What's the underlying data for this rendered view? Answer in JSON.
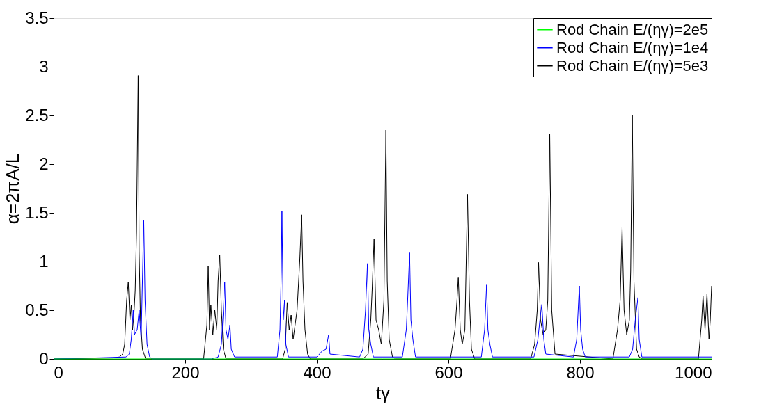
{
  "chart_data": {
    "type": "line",
    "xlabel": "tγ",
    "ylabel": "α=2πA/L",
    "xlim": [
      0,
      1000
    ],
    "xticks": [
      0,
      200,
      400,
      600,
      800,
      1000
    ],
    "ylim": [
      0,
      3.5
    ],
    "yticks": [
      0,
      0.5,
      1,
      1.5,
      2,
      2.5,
      3,
      3.5
    ],
    "grid": false,
    "legend": "top right",
    "marker": "none",
    "line_style": "solid",
    "series": [
      {
        "name": "Rod Chain E/(ηγ)=2e5",
        "color": "#00ff00",
        "x": [
          0,
          250,
          500,
          750,
          1000
        ],
        "values": [
          0,
          0,
          0,
          0,
          0
        ]
      },
      {
        "name": "Rod Chain E/(ηγ)=1e4",
        "color": "#0000ff",
        "x": [
          0,
          60,
          110,
          115,
          118,
          121,
          123,
          127,
          130,
          133,
          137,
          139,
          142,
          146,
          150,
          240,
          250,
          255,
          258,
          260,
          262,
          265,
          268,
          270,
          275,
          340,
          344,
          346,
          347,
          349,
          351,
          353,
          357,
          400,
          408,
          414,
          418,
          420,
          465,
          470,
          474,
          477,
          479,
          482,
          486,
          530,
          536,
          538,
          541,
          543,
          546,
          550,
          650,
          655,
          658,
          660,
          663,
          667,
          730,
          736,
          739,
          742,
          745,
          748,
          790,
          795,
          799,
          801,
          804,
          808,
          875,
          880,
          884,
          888,
          890,
          894,
          1000
        ],
        "values": [
          0,
          0.01,
          0.02,
          0.05,
          0.2,
          0.5,
          0.25,
          0.3,
          0.5,
          0.2,
          1.42,
          0.6,
          0.15,
          0.02,
          0,
          0,
          0.02,
          0.15,
          0.5,
          0.79,
          0.3,
          0.2,
          0.35,
          0.1,
          0.02,
          0.02,
          0.3,
          0.9,
          1.52,
          0.4,
          0.6,
          0.15,
          0.02,
          0.02,
          0.08,
          0.1,
          0.25,
          0.05,
          0.02,
          0.1,
          0.5,
          0.98,
          0.3,
          0.15,
          0.02,
          0.02,
          0.3,
          0.6,
          1.09,
          0.4,
          0.2,
          0.02,
          0.02,
          0.3,
          0.76,
          0.3,
          0.15,
          0.02,
          0.02,
          0.2,
          0.4,
          0.56,
          0.2,
          0.05,
          0.02,
          0.2,
          0.75,
          0.3,
          0.1,
          0.02,
          0.02,
          0.1,
          0.4,
          0.63,
          0.2,
          0.02,
          0.02
        ]
      },
      {
        "name": "Rod Chain E/(ηγ)=5e3",
        "color": "#000000",
        "x": [
          0,
          90,
          100,
          105,
          108,
          111,
          113.5,
          116,
          118,
          120,
          122,
          124,
          126,
          128.5,
          130,
          132,
          135,
          140,
          228,
          233,
          235,
          237,
          239,
          242,
          245,
          248,
          250,
          252.5,
          255,
          258,
          262,
          348,
          352,
          355,
          358,
          361,
          364,
          367,
          370,
          374,
          377,
          379,
          382,
          386,
          390,
          470,
          478,
          482,
          484,
          487,
          490,
          494,
          498,
          502,
          505,
          507,
          510,
          515,
          520,
          603,
          610,
          613,
          615,
          618,
          621,
          625,
          629,
          632,
          635,
          640,
          725,
          731,
          735,
          737,
          740,
          744,
          748,
          751,
          754,
          757,
          762,
          850,
          857,
          861,
          864,
          867,
          871,
          875,
          877,
          879.5,
          882,
          886,
          890,
          895,
          980,
          985,
          987,
          990,
          993,
          996,
          998,
          1000
        ],
        "values": [
          0,
          0.01,
          0.02,
          0.05,
          0.15,
          0.6,
          0.79,
          0.4,
          0.55,
          0.3,
          0.45,
          0.7,
          1.3,
          2.91,
          1.1,
          0.4,
          0.1,
          0,
          0,
          0.35,
          0.95,
          0.3,
          0.55,
          0.25,
          0.5,
          0.3,
          0.8,
          1.07,
          0.5,
          0.1,
          0,
          0,
          0.1,
          0.58,
          0.3,
          0.45,
          0.2,
          0.35,
          0.5,
          1.0,
          1.48,
          0.8,
          0.3,
          0.05,
          0,
          0,
          0.05,
          0.4,
          0.7,
          1.23,
          0.4,
          0.3,
          0.15,
          0.6,
          2.35,
          0.8,
          0.2,
          0.02,
          0,
          0,
          0.3,
          0.6,
          0.84,
          0.3,
          0.15,
          0.3,
          1.69,
          0.6,
          0.1,
          0,
          0,
          0.15,
          0.5,
          0.99,
          0.4,
          0.25,
          0.3,
          0.6,
          2.31,
          0.5,
          0.05,
          0,
          0.3,
          0.6,
          1.35,
          0.5,
          0.25,
          0.4,
          0.9,
          2.5,
          0.8,
          0.1,
          0.02,
          0,
          0,
          0.4,
          0.65,
          0.3,
          0.67,
          0.2,
          0.4,
          0.75
        ]
      }
    ]
  }
}
